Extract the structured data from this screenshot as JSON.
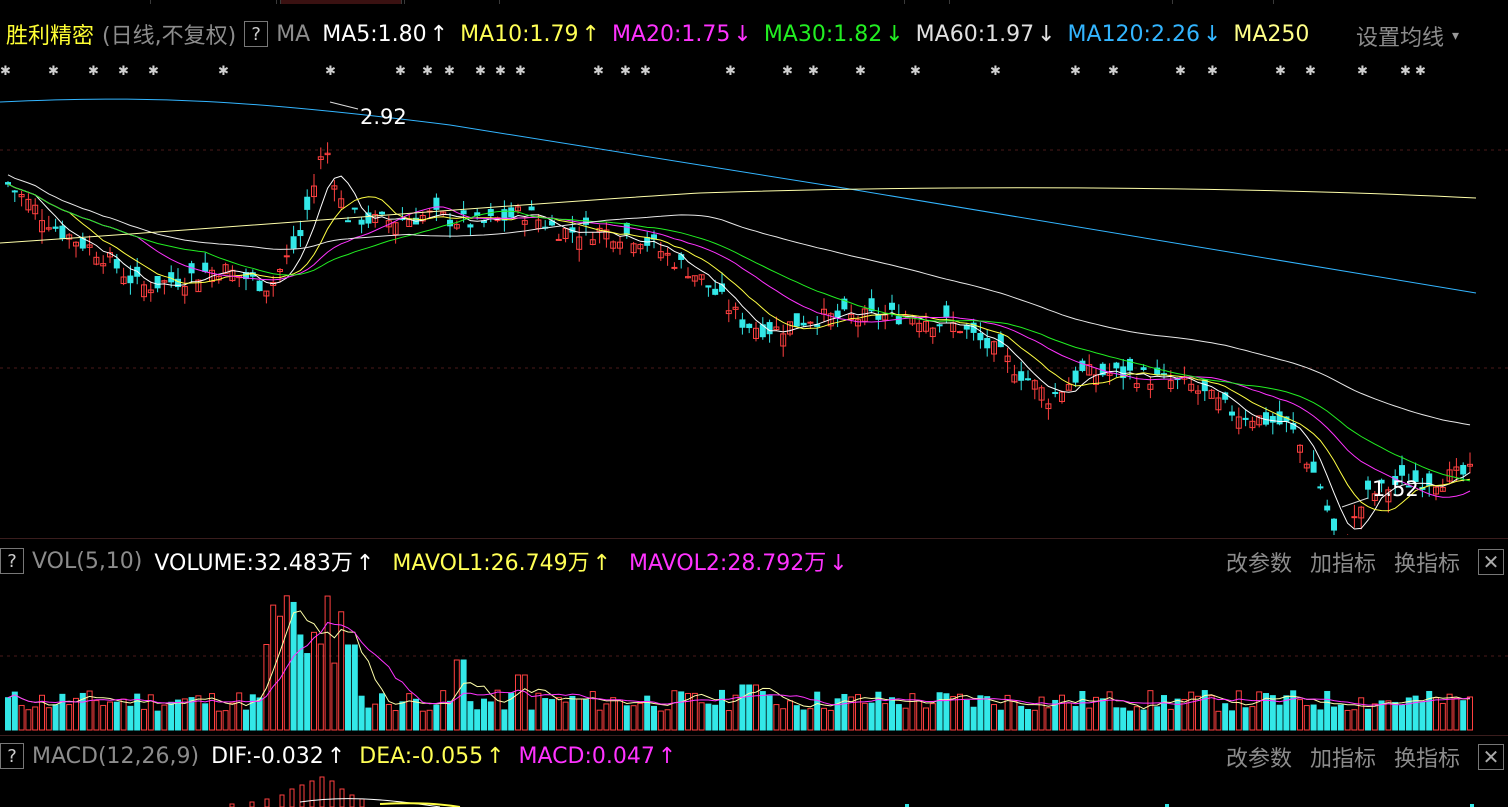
{
  "header": {
    "stock_name": "胜利精密",
    "period": "(日线,不复权)",
    "help": "?",
    "ma_label": "MA",
    "ma_items": [
      {
        "text": "MA5:1.80",
        "arrow": "↑",
        "color": "#ffffff"
      },
      {
        "text": "MA10:1.79",
        "arrow": "↑",
        "color": "#ffff55"
      },
      {
        "text": "MA20:1.75",
        "arrow": "↓",
        "color": "#ff33ff"
      },
      {
        "text": "MA30:1.82",
        "arrow": "↓",
        "color": "#22ee22"
      },
      {
        "text": "MA60:1.97",
        "arrow": "↓",
        "color": "#e0e0e0"
      },
      {
        "text": "MA120:2.26",
        "arrow": "↓",
        "color": "#33b5ff"
      },
      {
        "text": "MA250",
        "arrow": "",
        "color": "#ffff88"
      }
    ],
    "settings": "设置均线",
    "settings_arrow": "▾"
  },
  "price_chart": {
    "high_label": "2.92",
    "low_label": "1.52",
    "colors": {
      "up": "#ff4040",
      "down": "#33e8e8",
      "ma5": "#ffffff",
      "ma10": "#ffff44",
      "ma20": "#ff33ff",
      "ma30": "#22ee22",
      "ma60": "#e8e8e8",
      "ma120": "#33b5ff",
      "ma250": "#ffffaa"
    }
  },
  "volume_panel": {
    "help": "?",
    "title": "VOL(5,10)",
    "items": [
      {
        "text": "VOLUME:32.483万",
        "arrow": "↑",
        "color": "#ffffff"
      },
      {
        "text": "MAVOL1:26.749万",
        "arrow": "↑",
        "color": "#ffff55"
      },
      {
        "text": "MAVOL2:28.792万",
        "arrow": "↓",
        "color": "#ff33ff"
      }
    ],
    "buttons": {
      "modify": "改参数",
      "add": "加指标",
      "switch": "换指标",
      "close": "✕"
    }
  },
  "macd_panel": {
    "help": "?",
    "title": "MACD(12,26,9)",
    "items": [
      {
        "text": "DIF:-0.032",
        "arrow": "↑",
        "color": "#ffffff"
      },
      {
        "text": "DEA:-0.055",
        "arrow": "↑",
        "color": "#ffff55"
      },
      {
        "text": "MACD:0.047",
        "arrow": "↑",
        "color": "#ff33ff"
      }
    ],
    "buttons": {
      "modify": "改参数",
      "add": "加指标",
      "switch": "换指标",
      "close": "✕"
    }
  }
}
